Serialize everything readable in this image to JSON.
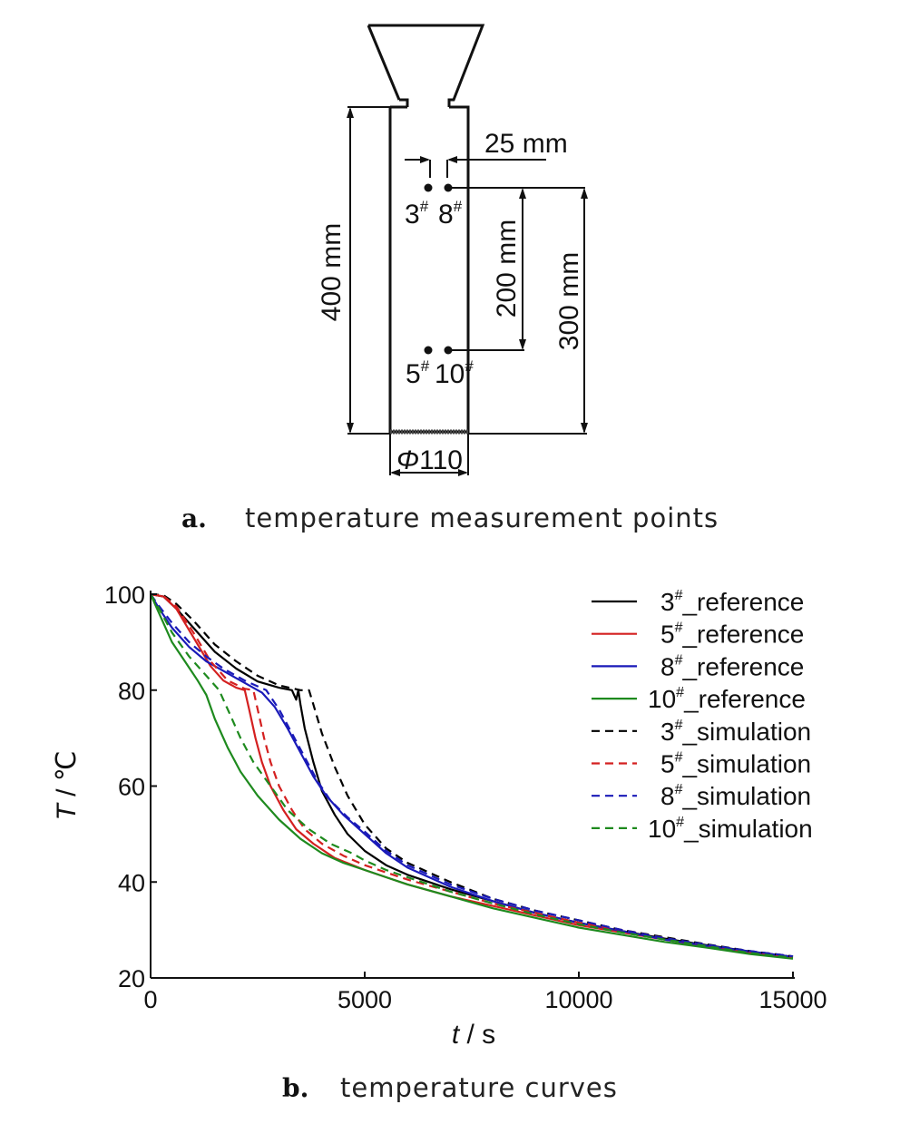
{
  "panel_a": {
    "caption_letter": "a.",
    "caption_text": "temperature measurement points",
    "labels": {
      "spacing": "25 mm",
      "height_total": "400 mm",
      "depth_200": "200 mm",
      "depth_300": "300 mm",
      "diameter_symbol": "Φ",
      "diameter_value": "110",
      "point_3": "3",
      "point_8": "8",
      "point_5": "5",
      "point_10": "10",
      "hash": "#"
    }
  },
  "panel_b": {
    "caption_letter": "b.",
    "caption_text": "temperature curves"
  },
  "chart_data": {
    "type": "line",
    "xlabel_var": "t",
    "xlabel_unit": " / s",
    "ylabel_var": "T",
    "ylabel_unit": " / ℃",
    "xlim": [
      0,
      15000
    ],
    "ylim": [
      20,
      100
    ],
    "x_ticks": [
      "0",
      "5000",
      "10000",
      "15000"
    ],
    "y_ticks": [
      "20",
      "40",
      "60",
      "80",
      "100"
    ],
    "grid": false,
    "legend_position": "top-right",
    "series": [
      {
        "name_num": "3",
        "name_sup": "#",
        "name_rest": "_reference",
        "color": "#000000",
        "dash": "solid",
        "points": [
          [
            0,
            100
          ],
          [
            300,
            99.5
          ],
          [
            600,
            97
          ],
          [
            1000,
            93
          ],
          [
            1500,
            88
          ],
          [
            2000,
            84.5
          ],
          [
            2500,
            81.8
          ],
          [
            3000,
            80.5
          ],
          [
            3300,
            80
          ],
          [
            3350,
            79
          ],
          [
            3400,
            78
          ],
          [
            3450,
            80
          ],
          [
            3500,
            77
          ],
          [
            3600,
            72
          ],
          [
            3800,
            65
          ],
          [
            4000,
            59
          ],
          [
            4300,
            54
          ],
          [
            4600,
            50
          ],
          [
            5000,
            46.5
          ],
          [
            5500,
            43.5
          ],
          [
            6000,
            41.5
          ],
          [
            7000,
            38.5
          ],
          [
            8000,
            36
          ],
          [
            9000,
            33.5
          ],
          [
            10000,
            31.5
          ],
          [
            11000,
            29.8
          ],
          [
            12000,
            28.2
          ],
          [
            13000,
            26.8
          ],
          [
            14000,
            25.5
          ],
          [
            15000,
            24.4
          ]
        ]
      },
      {
        "name_num": "5",
        "name_sup": "#",
        "name_rest": "_reference",
        "color": "#d42020",
        "dash": "solid",
        "points": [
          [
            0,
            100
          ],
          [
            300,
            99.5
          ],
          [
            600,
            97
          ],
          [
            1000,
            91
          ],
          [
            1400,
            85
          ],
          [
            1700,
            82
          ],
          [
            2000,
            80.5
          ],
          [
            2200,
            80
          ],
          [
            2300,
            76
          ],
          [
            2450,
            70
          ],
          [
            2600,
            65
          ],
          [
            2800,
            60
          ],
          [
            3100,
            55
          ],
          [
            3400,
            51
          ],
          [
            3800,
            48
          ],
          [
            4300,
            45
          ],
          [
            5000,
            42.5
          ],
          [
            5500,
            41
          ],
          [
            6000,
            39.5
          ],
          [
            7000,
            37
          ],
          [
            8000,
            35
          ],
          [
            9000,
            33
          ],
          [
            10000,
            31
          ],
          [
            11000,
            29.5
          ],
          [
            12000,
            28
          ],
          [
            13000,
            26.5
          ],
          [
            14000,
            25.2
          ],
          [
            15000,
            24.2
          ]
        ]
      },
      {
        "name_num": "8",
        "name_sup": "#",
        "name_rest": "_reference",
        "color": "#1a1ab8",
        "dash": "solid",
        "points": [
          [
            0,
            100
          ],
          [
            200,
            97
          ],
          [
            500,
            93
          ],
          [
            900,
            89
          ],
          [
            1300,
            86
          ],
          [
            1700,
            84
          ],
          [
            2200,
            81.5
          ],
          [
            2600,
            79.5
          ],
          [
            2900,
            76.5
          ],
          [
            3200,
            72
          ],
          [
            3500,
            67
          ],
          [
            3800,
            62
          ],
          [
            4100,
            58
          ],
          [
            4500,
            54
          ],
          [
            5000,
            50
          ],
          [
            5500,
            46
          ],
          [
            6000,
            43
          ],
          [
            7000,
            39
          ],
          [
            8000,
            36
          ],
          [
            9000,
            33.5
          ],
          [
            10000,
            31.5
          ],
          [
            11000,
            29.8
          ],
          [
            12000,
            28
          ],
          [
            13000,
            26.7
          ],
          [
            14000,
            25.5
          ],
          [
            15000,
            24.4
          ]
        ]
      },
      {
        "name_num": "10",
        "name_sup": "#",
        "name_rest": "_reference",
        "color": "#1e8a1e",
        "dash": "solid",
        "points": [
          [
            0,
            100
          ],
          [
            200,
            96
          ],
          [
            500,
            90
          ],
          [
            800,
            86
          ],
          [
            1100,
            82
          ],
          [
            1300,
            79
          ],
          [
            1500,
            74
          ],
          [
            1800,
            68
          ],
          [
            2100,
            63
          ],
          [
            2500,
            58
          ],
          [
            3000,
            53
          ],
          [
            3500,
            49
          ],
          [
            4000,
            46
          ],
          [
            4500,
            44
          ],
          [
            5000,
            42.5
          ],
          [
            5500,
            41
          ],
          [
            6000,
            39.5
          ],
          [
            7000,
            37
          ],
          [
            8000,
            34.5
          ],
          [
            9000,
            32.5
          ],
          [
            10000,
            30.5
          ],
          [
            11000,
            29
          ],
          [
            12000,
            27.5
          ],
          [
            13000,
            26.3
          ],
          [
            14000,
            25
          ],
          [
            15000,
            24
          ]
        ]
      },
      {
        "name_num": "3",
        "name_sup": "#",
        "name_rest": "_simulation",
        "color": "#000000",
        "dash": "dashed",
        "points": [
          [
            0,
            100
          ],
          [
            300,
            99.8
          ],
          [
            600,
            98
          ],
          [
            1000,
            94.5
          ],
          [
            1500,
            89.5
          ],
          [
            2000,
            86
          ],
          [
            2500,
            83
          ],
          [
            3000,
            81
          ],
          [
            3500,
            80
          ],
          [
            3700,
            80
          ],
          [
            3800,
            77
          ],
          [
            4000,
            71
          ],
          [
            4300,
            64
          ],
          [
            4600,
            58
          ],
          [
            5000,
            52
          ],
          [
            5500,
            47
          ],
          [
            6000,
            44
          ],
          [
            7000,
            40
          ],
          [
            8000,
            36.5
          ],
          [
            9000,
            34
          ],
          [
            10000,
            32
          ],
          [
            11000,
            30
          ],
          [
            12000,
            28.5
          ],
          [
            13000,
            27
          ],
          [
            14000,
            25.6
          ],
          [
            15000,
            24.5
          ]
        ]
      },
      {
        "name_num": "5",
        "name_sup": "#",
        "name_rest": "_simulation",
        "color": "#d42020",
        "dash": "dashed",
        "points": [
          [
            0,
            100
          ],
          [
            300,
            99.6
          ],
          [
            600,
            97.5
          ],
          [
            1000,
            92
          ],
          [
            1400,
            86
          ],
          [
            1800,
            82
          ],
          [
            2200,
            80.3
          ],
          [
            2400,
            80
          ],
          [
            2500,
            76
          ],
          [
            2650,
            70
          ],
          [
            2800,
            65
          ],
          [
            3000,
            60
          ],
          [
            3300,
            55
          ],
          [
            3600,
            51
          ],
          [
            4000,
            48
          ],
          [
            4500,
            45.5
          ],
          [
            5000,
            43.5
          ],
          [
            5500,
            42
          ],
          [
            6000,
            40.5
          ],
          [
            7000,
            38
          ],
          [
            8000,
            35.5
          ],
          [
            9000,
            33.5
          ],
          [
            10000,
            31.5
          ],
          [
            11000,
            30
          ],
          [
            12000,
            28.3
          ],
          [
            13000,
            26.8
          ],
          [
            14000,
            25.4
          ],
          [
            15000,
            24.4
          ]
        ]
      },
      {
        "name_num": "8",
        "name_sup": "#",
        "name_rest": "_simulation",
        "color": "#1a1ab8",
        "dash": "dashed",
        "points": [
          [
            0,
            100
          ],
          [
            200,
            97.5
          ],
          [
            500,
            94
          ],
          [
            900,
            90
          ],
          [
            1300,
            87
          ],
          [
            1700,
            84.5
          ],
          [
            2200,
            82
          ],
          [
            2700,
            80
          ],
          [
            3000,
            76
          ],
          [
            3300,
            71
          ],
          [
            3600,
            66
          ],
          [
            3900,
            61
          ],
          [
            4200,
            57
          ],
          [
            4600,
            53.5
          ],
          [
            5000,
            50.5
          ],
          [
            5500,
            46.5
          ],
          [
            6000,
            43.5
          ],
          [
            7000,
            39.5
          ],
          [
            8000,
            36.5
          ],
          [
            9000,
            34
          ],
          [
            10000,
            32
          ],
          [
            11000,
            30
          ],
          [
            12000,
            28.3
          ],
          [
            13000,
            26.9
          ],
          [
            14000,
            25.6
          ],
          [
            15000,
            24.5
          ]
        ]
      },
      {
        "name_num": "10",
        "name_sup": "#",
        "name_rest": "_simulation",
        "color": "#1e8a1e",
        "dash": "dashed",
        "points": [
          [
            0,
            100
          ],
          [
            200,
            97
          ],
          [
            500,
            92
          ],
          [
            900,
            87
          ],
          [
            1300,
            83
          ],
          [
            1600,
            80
          ],
          [
            1800,
            76
          ],
          [
            2100,
            70
          ],
          [
            2400,
            65
          ],
          [
            2800,
            60
          ],
          [
            3200,
            55
          ],
          [
            3700,
            51
          ],
          [
            4200,
            48
          ],
          [
            4700,
            46
          ],
          [
            5000,
            44.5
          ],
          [
            5500,
            42.5
          ],
          [
            6000,
            41
          ],
          [
            7000,
            38
          ],
          [
            8000,
            35.5
          ],
          [
            9000,
            33.2
          ],
          [
            10000,
            31.2
          ],
          [
            11000,
            29.5
          ],
          [
            12000,
            28
          ],
          [
            13000,
            26.6
          ],
          [
            14000,
            25.2
          ],
          [
            15000,
            24.2
          ]
        ]
      }
    ]
  }
}
